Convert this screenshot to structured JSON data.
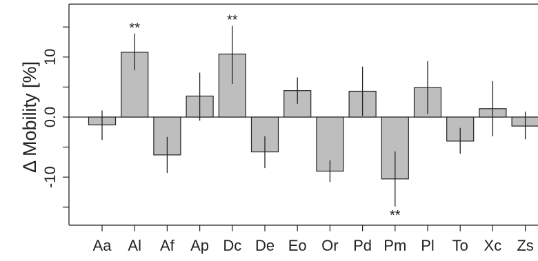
{
  "chart_data": {
    "type": "bar",
    "title": "",
    "xlabel": "",
    "ylabel": "Δ Mobility [%]",
    "categories": [
      "Aa",
      "Al",
      "Af",
      "Ap",
      "Dc",
      "De",
      "Eo",
      "Or",
      "Pd",
      "Pm",
      "Pl",
      "To",
      "Xc",
      "Zs"
    ],
    "values": [
      -1.3,
      10.8,
      -6.3,
      3.5,
      10.5,
      -5.8,
      4.4,
      -9.0,
      4.3,
      -10.3,
      4.9,
      -4.0,
      1.4,
      -1.5
    ],
    "error_low": [
      -3.8,
      7.8,
      -9.3,
      -0.6,
      5.5,
      -8.5,
      2.2,
      -10.8,
      0.2,
      -14.9,
      0.5,
      -6.1,
      -3.2,
      -3.7
    ],
    "error_high": [
      1.1,
      13.9,
      -3.3,
      7.4,
      15.2,
      -3.2,
      6.6,
      -7.2,
      8.4,
      -5.7,
      9.3,
      -1.8,
      6.0,
      0.9
    ],
    "significance": [
      "",
      "**",
      "",
      "",
      "**",
      "",
      "",
      "",
      "",
      "**",
      "",
      "",
      "",
      ""
    ],
    "yticks": [
      -10,
      0,
      10
    ],
    "ytick_labels": [
      "-10",
      "0.0",
      "10"
    ],
    "ylim": [
      -18,
      19
    ],
    "bar_color": "#bebebe",
    "grid": false,
    "zero_line": true
  }
}
